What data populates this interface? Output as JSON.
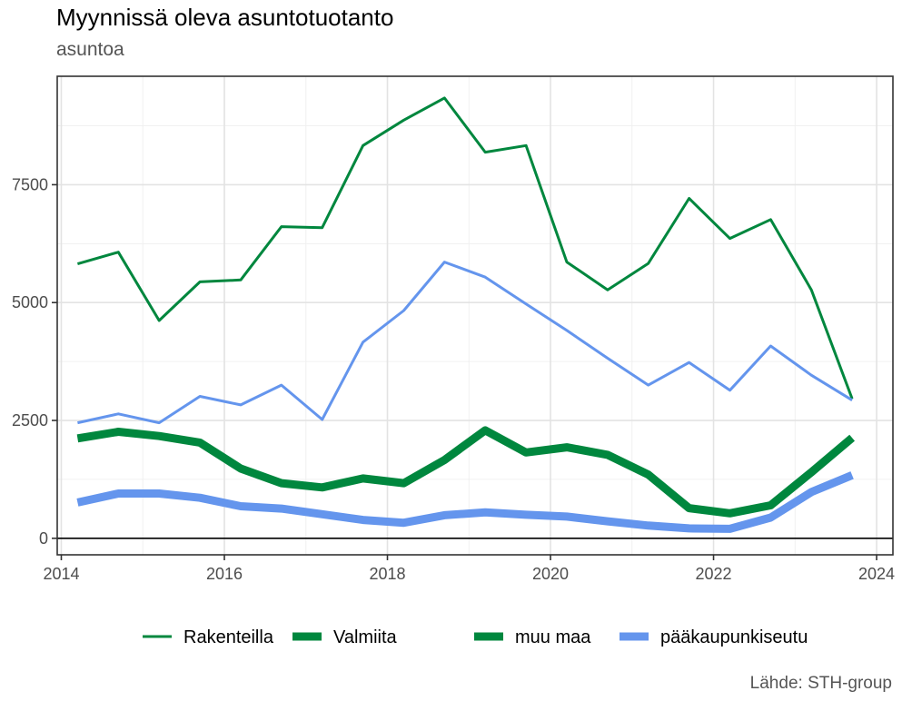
{
  "chart_data": {
    "type": "line",
    "title": "Myynnissä oleva asuntotuotanto",
    "subtitle": "asuntoa",
    "caption": "Lähde: STH-group",
    "xlim": [
      2013.95,
      2024.2
    ],
    "ylim": [
      -350,
      9800
    ],
    "x_ticks": [
      2014,
      2016,
      2018,
      2020,
      2022,
      2024
    ],
    "y_ticks": [
      0,
      2500,
      5000,
      7500
    ],
    "grid": true,
    "legend_position": "bottom",
    "series": [
      {
        "name": "Rakenteilla / muu maa",
        "color": "#00873e",
        "width": 3,
        "x": [
          2014.2,
          2014.7,
          2015.2,
          2015.7,
          2016.2,
          2016.7,
          2017.2,
          2017.7,
          2018.2,
          2018.7,
          2019.2,
          2019.7,
          2020.2,
          2020.7,
          2021.2,
          2021.7,
          2022.2,
          2022.7,
          2023.2,
          2023.7
        ],
        "values": [
          5820,
          6070,
          4620,
          5440,
          5480,
          6610,
          6590,
          8330,
          8870,
          9340,
          8190,
          8330,
          5860,
          5270,
          5830,
          7210,
          6360,
          6760,
          5270,
          2960
        ]
      },
      {
        "name": "Rakenteilla / pääkaupunkiseutu",
        "color": "#6495ed",
        "width": 3,
        "x": [
          2014.2,
          2014.7,
          2015.2,
          2015.7,
          2016.2,
          2016.7,
          2017.2,
          2017.7,
          2018.2,
          2018.7,
          2019.2,
          2019.7,
          2020.2,
          2020.7,
          2021.2,
          2021.7,
          2022.2,
          2022.7,
          2023.2,
          2023.7
        ],
        "values": [
          2450,
          2640,
          2450,
          3010,
          2830,
          3250,
          2520,
          4160,
          4830,
          5860,
          5540,
          4970,
          4410,
          3820,
          3250,
          3730,
          3140,
          4080,
          3460,
          2930
        ]
      },
      {
        "name": "Valmiita / muu maa",
        "color": "#00873e",
        "width": 9,
        "x": [
          2014.2,
          2014.7,
          2015.2,
          2015.7,
          2016.2,
          2016.7,
          2017.2,
          2017.7,
          2018.2,
          2018.7,
          2019.2,
          2019.7,
          2020.2,
          2020.7,
          2021.2,
          2021.7,
          2022.2,
          2022.7,
          2023.2,
          2023.7
        ],
        "values": [
          2120,
          2260,
          2170,
          2030,
          1480,
          1170,
          1080,
          1270,
          1170,
          1660,
          2290,
          1820,
          1930,
          1770,
          1350,
          640,
          530,
          700,
          1400,
          2130
        ]
      },
      {
        "name": "Valmiita / pääkaupunkiseutu",
        "color": "#6495ed",
        "width": 9,
        "x": [
          2014.2,
          2014.7,
          2015.2,
          2015.7,
          2016.2,
          2016.7,
          2017.2,
          2017.7,
          2018.2,
          2018.7,
          2019.2,
          2019.7,
          2020.2,
          2020.7,
          2021.2,
          2021.7,
          2022.2,
          2022.7,
          2023.2,
          2023.7
        ],
        "values": [
          760,
          950,
          950,
          860,
          680,
          630,
          510,
          390,
          330,
          490,
          550,
          500,
          460,
          360,
          270,
          210,
          200,
          440,
          980,
          1340
        ]
      }
    ],
    "legend": [
      {
        "label": "Rakenteilla",
        "color": "#00873e",
        "width": 3
      },
      {
        "label": "Valmiita",
        "color": "#00873e",
        "width": 9
      },
      {
        "label": "muu maa",
        "color": "#00873e",
        "width": 9
      },
      {
        "label": "pääkaupunkiseutu",
        "color": "#6495ed",
        "width": 9
      }
    ]
  }
}
